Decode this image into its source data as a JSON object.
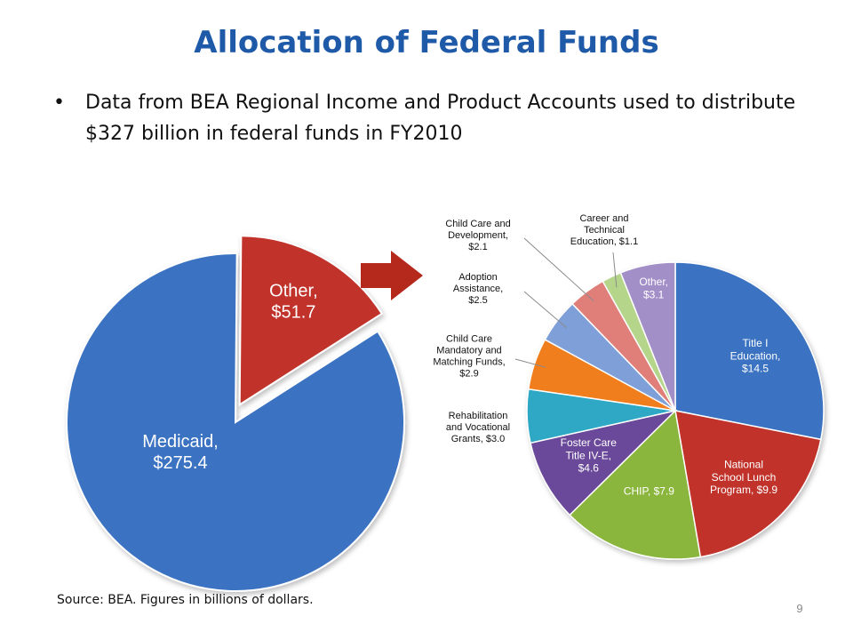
{
  "slide": {
    "title": "Allocation of Federal Funds",
    "bullet": "Data from BEA Regional Income and Product Accounts used to distribute $327 billion in federal funds in FY2010",
    "bullet_marker": "•",
    "source": "Source: BEA.  Figures in billions of dollars.",
    "page_number": "9"
  },
  "colors": {
    "title": "#1f5aa8",
    "arrow": "#b5281c"
  },
  "chart_data": [
    {
      "type": "pie",
      "title": "",
      "unit": "billions of dollars",
      "slices": [
        {
          "label": [
            "Other,",
            "$51.7"
          ],
          "value": 51.7,
          "color": "#c0312a",
          "exploded": true
        },
        {
          "label": [
            "Medicaid,",
            "$275.4"
          ],
          "value": 275.4,
          "color": "#3b73c2",
          "exploded": false
        }
      ]
    },
    {
      "type": "pie",
      "title": "",
      "unit": "billions of dollars",
      "slices": [
        {
          "label": [
            "Title I",
            "Education,",
            "$14.5"
          ],
          "value": 14.5,
          "color": "#3b73c2"
        },
        {
          "label": [
            "National",
            "School Lunch",
            "Program,  $9.9"
          ],
          "value": 9.9,
          "color": "#c0312a"
        },
        {
          "label": [
            "CHIP,  $7.9"
          ],
          "value": 7.9,
          "color": "#8bb63e"
        },
        {
          "label": [
            "Foster Care",
            "Title IV-E,",
            "$4.6"
          ],
          "value": 4.6,
          "color": "#6a4a9a"
        },
        {
          "label": [
            "Rehabilitation",
            "and Vocational",
            "Grants,  $3.0"
          ],
          "value": 3.0,
          "color": "#2ea8c4"
        },
        {
          "label": [
            "Child Care",
            "Mandatory and",
            "Matching Funds,",
            "$2.9"
          ],
          "value": 2.9,
          "color": "#f07e1c"
        },
        {
          "label": [
            "Adoption",
            "Assistance,",
            "$2.5"
          ],
          "value": 2.5,
          "color": "#7f9fd8"
        },
        {
          "label": [
            "Child Care and",
            "Development,",
            "$2.1"
          ],
          "value": 2.1,
          "color": "#e07f7a"
        },
        {
          "label": [
            "Career and",
            "Technical",
            "Education,  $1.1"
          ],
          "value": 1.1,
          "color": "#b5d68a"
        },
        {
          "label": [
            "Other,",
            "$3.1"
          ],
          "value": 3.1,
          "color": "#a38fc8"
        }
      ]
    }
  ]
}
